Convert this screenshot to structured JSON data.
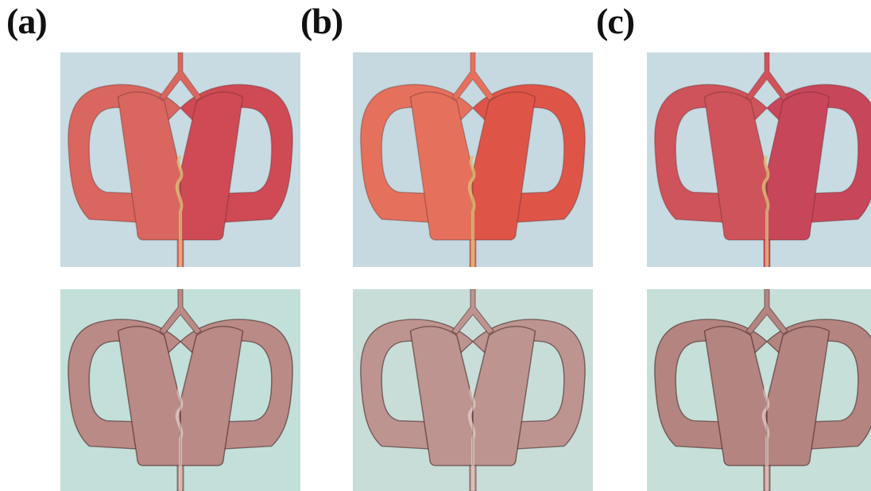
{
  "panels": [
    {
      "label": "(a)",
      "top_fluid": "#d9675f",
      "top_fluid_right": "#cf4a55",
      "bottom_fluid": "#b98a86",
      "background_top": "#c9dbe2",
      "background_bottom": "#c3dfd9"
    },
    {
      "label": "(b)",
      "top_fluid": "#e5715d",
      "top_fluid_right": "#de5548",
      "bottom_fluid": "#bd948f",
      "background_top": "#c6d8e0",
      "background_bottom": "#c8ddd8"
    },
    {
      "label": "(c)",
      "top_fluid": "#cf535b",
      "top_fluid_right": "#c8465a",
      "bottom_fluid": "#b48580",
      "background_top": "#c9dbe2",
      "background_bottom": "#c6dfd8"
    }
  ]
}
